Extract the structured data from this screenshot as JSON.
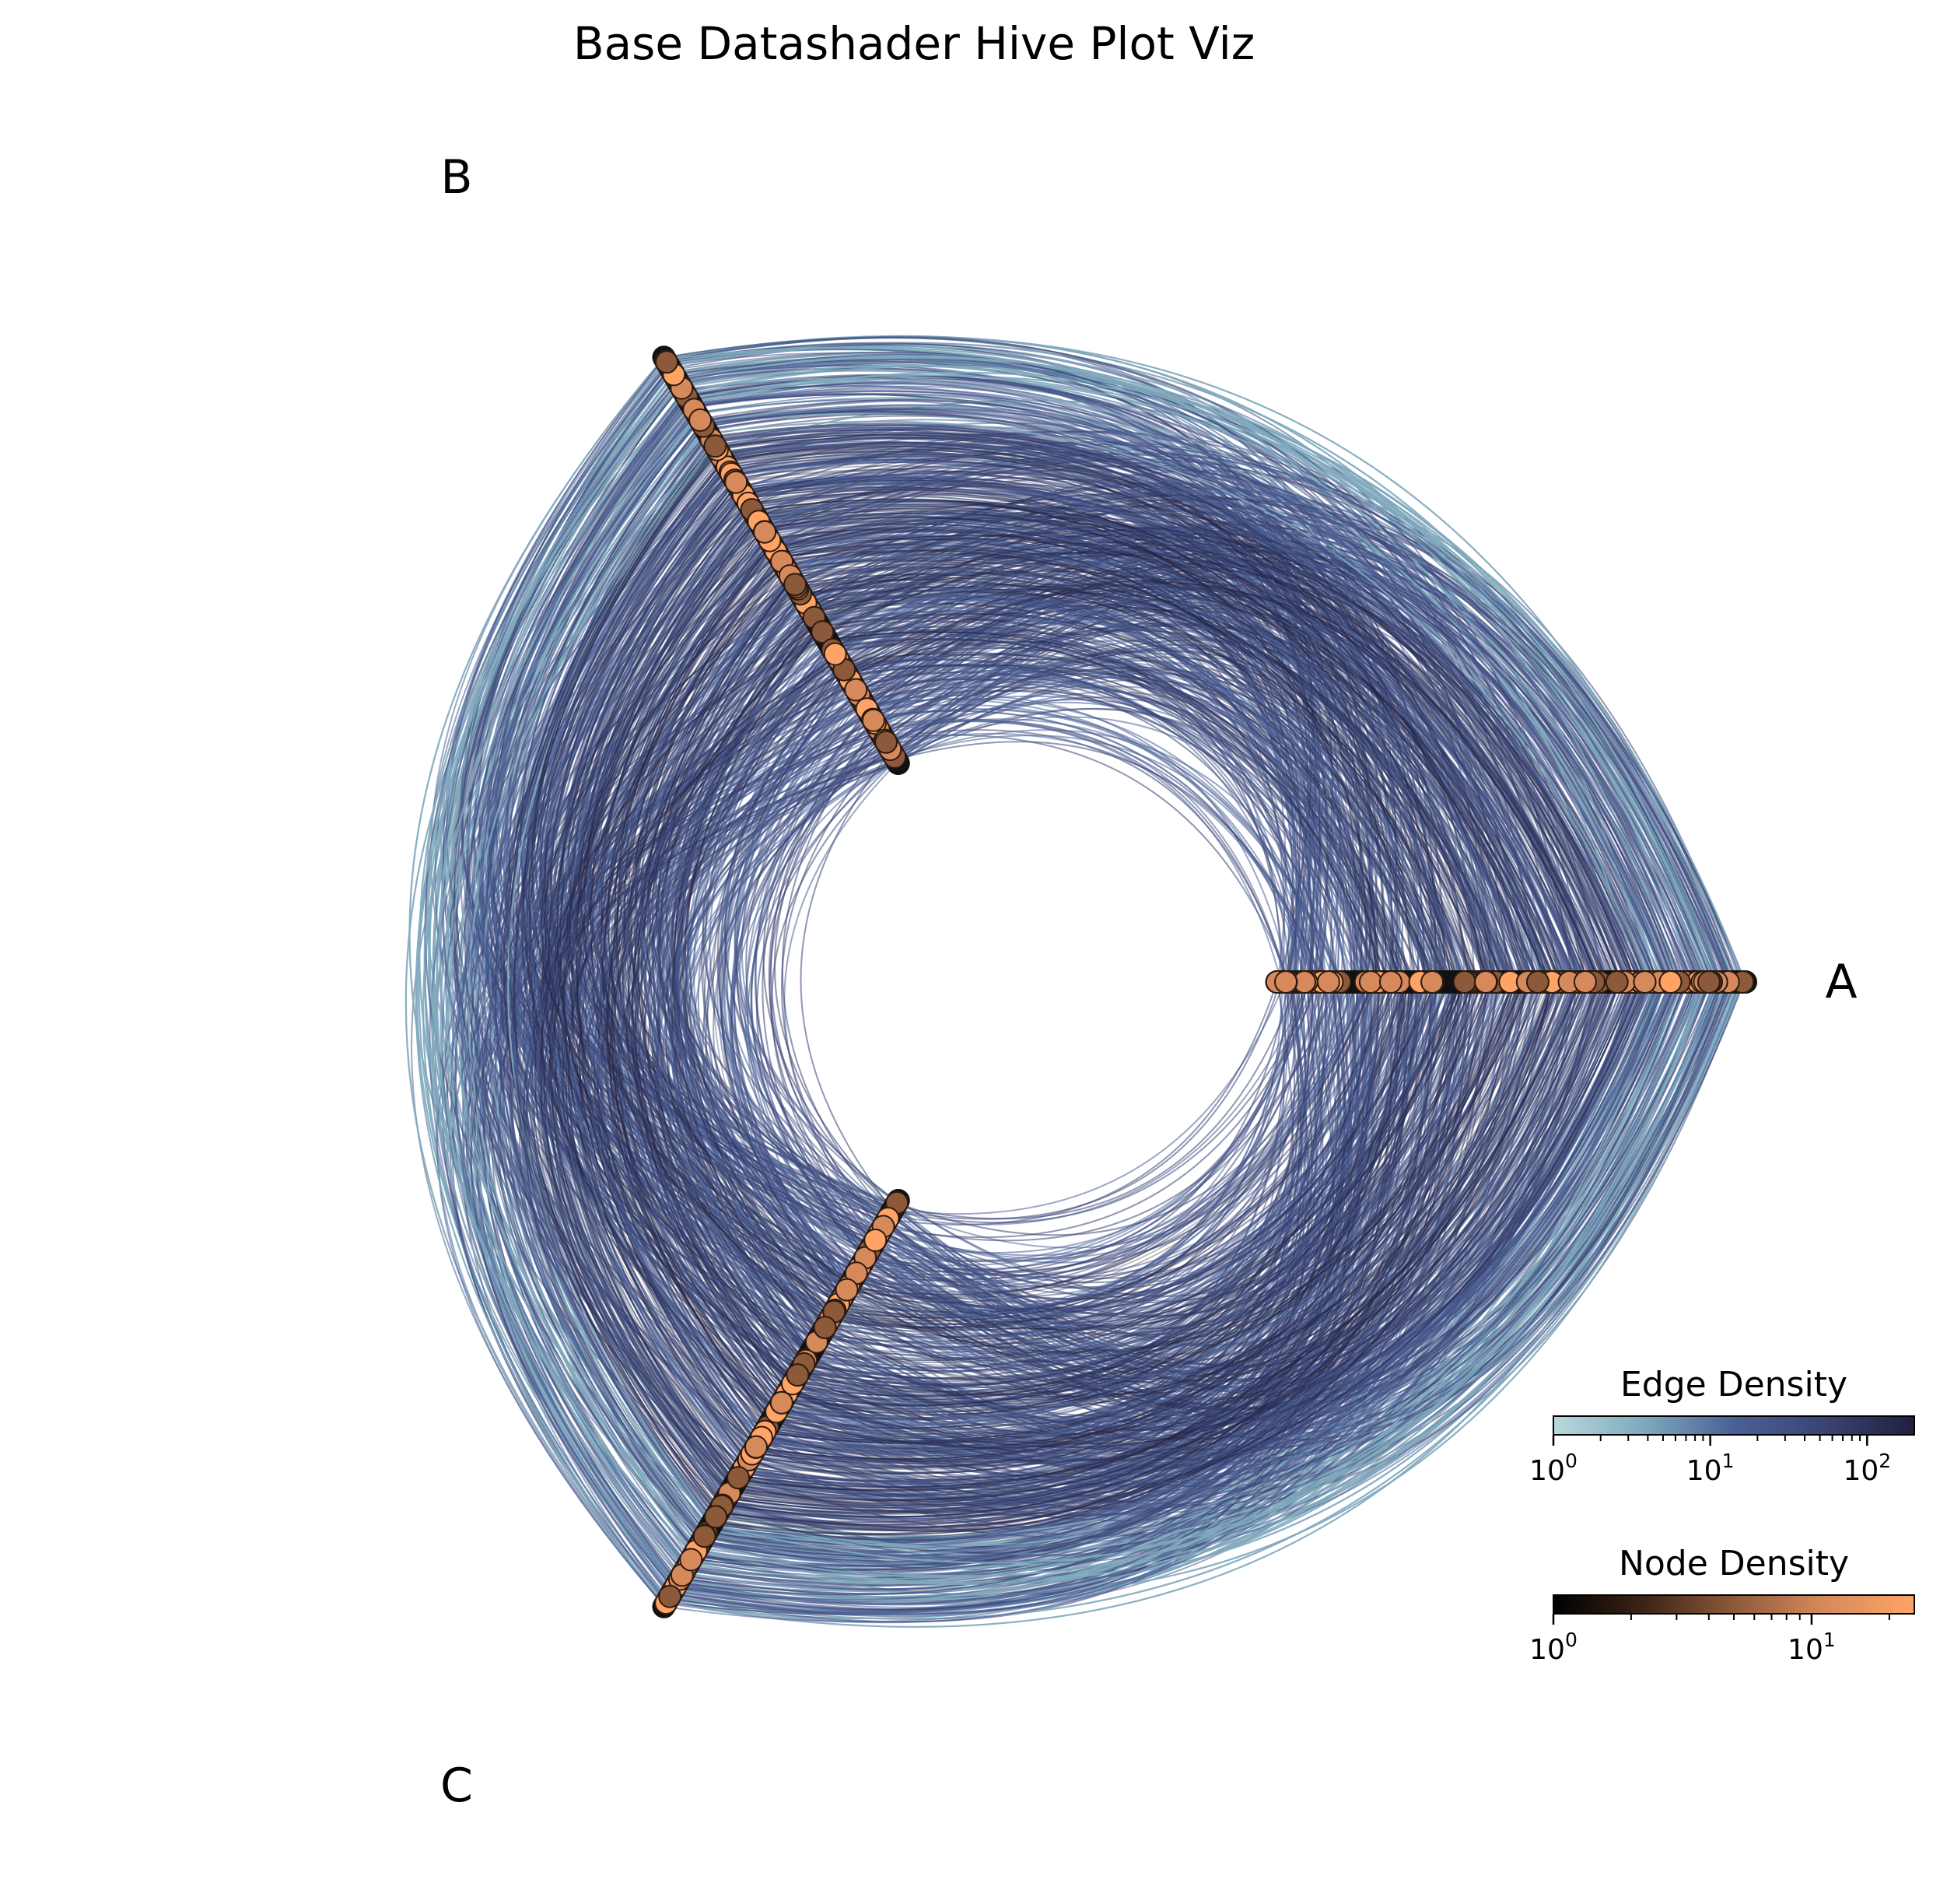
{
  "chart_data": {
    "type": "hive",
    "title": "Base Datashader Hive Plot Viz",
    "axes": [
      {
        "name": "A",
        "angle_deg": 0
      },
      {
        "name": "B",
        "angle_deg": 120
      },
      {
        "name": "C",
        "angle_deg": 240
      }
    ],
    "axis_radial_range": [
      0.35,
      1.0
    ],
    "edges": {
      "shading": "datashader density",
      "colormap": [
        "#b8d9dc",
        "#7fa9bd",
        "#4a6096",
        "#3a4475",
        "#21203d"
      ]
    },
    "nodes": {
      "shading": "datashader density",
      "colormap": [
        "#000000",
        "#3d2316",
        "#8c5a3a",
        "#d68a5c",
        "#ffa466"
      ]
    },
    "colorbars": [
      {
        "title": "Edge Density",
        "scale": "log",
        "range": [
          1,
          200
        ],
        "ticks": [
          {
            "base": "10",
            "exp": "0",
            "value": 1
          },
          {
            "base": "10",
            "exp": "1",
            "value": 10
          },
          {
            "base": "10",
            "exp": "2",
            "value": 100
          }
        ],
        "colors": [
          "#b8d9dc",
          "#7fa9bd",
          "#4a6096",
          "#3a4475",
          "#21203d"
        ]
      },
      {
        "title": "Node Density",
        "scale": "log",
        "range": [
          1,
          25
        ],
        "ticks": [
          {
            "base": "10",
            "exp": "0",
            "value": 1
          },
          {
            "base": "10",
            "exp": "1",
            "value": 10
          }
        ],
        "colors": [
          "#000000",
          "#3d2316",
          "#8c5a3a",
          "#d68a5c",
          "#ffa466"
        ]
      }
    ]
  }
}
